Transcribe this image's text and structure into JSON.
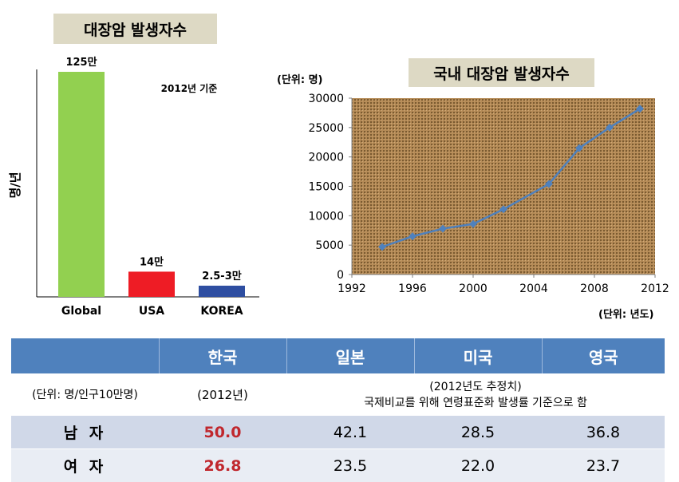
{
  "left_chart": {
    "title": "대장암 발생자수",
    "note": "2012년 기준",
    "ylabel": "명/년"
  },
  "right_chart": {
    "title": "국내 대장암 발생자수",
    "y_unit": "(단위: 명)",
    "x_unit": "(단위: 년도)"
  },
  "chart_data": [
    {
      "type": "bar",
      "title": "대장암 발생자수",
      "ylabel": "명/년",
      "categories": [
        "Global",
        "USA",
        "KOREA"
      ],
      "values": [
        125,
        14,
        2.75
      ],
      "data_labels": [
        "125만",
        "14만",
        "2.5-3만"
      ],
      "colors": [
        "#92d050",
        "#ee1c25",
        "#2e4ea1"
      ],
      "annotation": "2012년 기준"
    },
    {
      "type": "line",
      "title": "국내 대장암 발생자수",
      "x": [
        1994,
        1996,
        1998,
        2000,
        2002,
        2005,
        2007,
        2009,
        2011
      ],
      "y": [
        4700,
        6500,
        7800,
        8600,
        11100,
        15400,
        21500,
        25000,
        28200
      ],
      "xlim": [
        1992,
        2012
      ],
      "ylim": [
        0,
        30000
      ],
      "xticks": [
        1992,
        1996,
        2000,
        2004,
        2008,
        2012
      ],
      "yticks": [
        0,
        5000,
        10000,
        15000,
        20000,
        25000,
        30000
      ],
      "line_color": "#4f81bd",
      "plot_background": "#b58b57"
    }
  ],
  "table": {
    "headers": [
      "",
      "한국",
      "일본",
      "미국",
      "영국"
    ],
    "unit_label": "(단위: 명/인구10만명)",
    "korea_year": "(2012년)",
    "estimate_note_1": "(2012년도 추정치)",
    "estimate_note_2": "국제비교를 위해 연령표준화 발생률 기준으로 함",
    "rows": [
      {
        "label": "남 자",
        "values": [
          "50.0",
          "42.1",
          "28.5",
          "36.8"
        ]
      },
      {
        "label": "여 자",
        "values": [
          "26.8",
          "23.5",
          "22.0",
          "23.7"
        ]
      }
    ]
  }
}
